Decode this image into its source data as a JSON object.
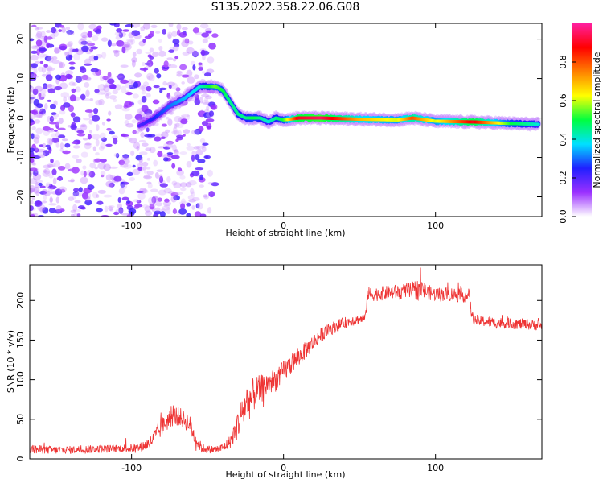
{
  "title": "S135.2022.358.22.06.G08",
  "chart_data": [
    {
      "type": "heatmap",
      "xlabel": "Height of straight line (km)",
      "ylabel": "Frequency (Hz)",
      "xlim": [
        -167,
        170
      ],
      "ylim": [
        -25,
        24
      ],
      "xticks": [
        -100,
        0,
        100
      ],
      "yticks": [
        -20,
        -10,
        0,
        10,
        20
      ],
      "grid": false,
      "colorbar": {
        "label": "Normalized spectral amplitude",
        "range": [
          0,
          1
        ],
        "ticks": [
          0.0,
          0.2,
          0.4,
          0.6,
          0.8
        ],
        "tick_labels": [
          "0.0",
          "0.2",
          "0.4",
          "0.6",
          "0.8"
        ],
        "colors": [
          "#ffffff",
          "#9b30ff",
          "#2020ff",
          "#00e0ff",
          "#00ff40",
          "#ffff00",
          "#ff8000",
          "#ff0000",
          "#ff20a0"
        ]
      },
      "ridge": {
        "x": [
          -95,
          -85,
          -75,
          -65,
          -55,
          -45,
          -40,
          -35,
          -30,
          -25,
          -20,
          -15,
          -10,
          -5,
          0,
          10,
          25,
          50,
          75,
          85,
          100,
          125,
          150,
          168
        ],
        "y": [
          -2,
          0,
          3,
          5,
          8,
          8,
          7,
          4,
          1,
          0,
          0,
          0,
          -1,
          0,
          -0.5,
          0,
          0,
          -0.3,
          -0.5,
          0,
          -0.8,
          -1,
          -1.4,
          -1.6
        ],
        "amplitude": [
          0.2,
          0.25,
          0.3,
          0.35,
          0.4,
          0.55,
          0.5,
          0.45,
          0.45,
          0.45,
          0.5,
          0.45,
          0.4,
          0.45,
          0.5,
          0.9,
          0.95,
          0.7,
          0.6,
          0.8,
          0.6,
          0.9,
          0.5,
          0.4
        ]
      },
      "noise_extent_x": [
        -167,
        -45
      ]
    },
    {
      "type": "line",
      "xlabel": "Height of straight line (km)",
      "ylabel": "SNR (10 * v/v)",
      "xlim": [
        -167,
        170
      ],
      "ylim": [
        0,
        245
      ],
      "xticks": [
        -100,
        0,
        100
      ],
      "yticks": [
        0,
        50,
        100,
        150,
        200
      ],
      "grid": false,
      "series": [
        {
          "color": "#ee3333",
          "x": [
            -167,
            -150,
            -130,
            -110,
            -95,
            -88,
            -82,
            -78,
            -74,
            -70,
            -66,
            -62,
            -58,
            -54,
            -50,
            -44,
            -40,
            -36,
            -33,
            -30,
            -27,
            -25,
            -22,
            -20,
            -18,
            -15,
            -10,
            -5,
            0,
            5,
            10,
            15,
            20,
            25,
            30,
            35,
            40,
            45,
            50,
            54,
            55,
            60,
            70,
            80,
            85,
            90,
            95,
            100,
            110,
            115,
            122,
            124,
            126,
            130,
            140,
            150,
            160,
            170
          ],
          "y": [
            12,
            11,
            12,
            13,
            14,
            20,
            35,
            45,
            52,
            55,
            50,
            45,
            25,
            14,
            12,
            12,
            14,
            20,
            30,
            45,
            60,
            70,
            75,
            80,
            85,
            88,
            95,
            100,
            110,
            120,
            128,
            138,
            148,
            157,
            163,
            168,
            172,
            175,
            176,
            178,
            208,
            208,
            210,
            212,
            212,
            215,
            210,
            208,
            208,
            207,
            206,
            180,
            175,
            174,
            172,
            171,
            170,
            168
          ],
          "noise_amplitude": [
            6,
            5,
            5,
            5,
            6,
            8,
            12,
            12,
            12,
            12,
            12,
            12,
            10,
            6,
            5,
            5,
            6,
            8,
            12,
            20,
            25,
            25,
            25,
            22,
            20,
            18,
            16,
            15,
            14,
            13,
            12,
            11,
            10,
            9,
            8,
            8,
            7,
            7,
            6,
            6,
            9,
            9,
            9,
            10,
            12,
            14,
            10,
            9,
            9,
            9,
            9,
            7,
            7,
            7,
            7,
            7,
            7,
            7
          ]
        }
      ]
    }
  ]
}
